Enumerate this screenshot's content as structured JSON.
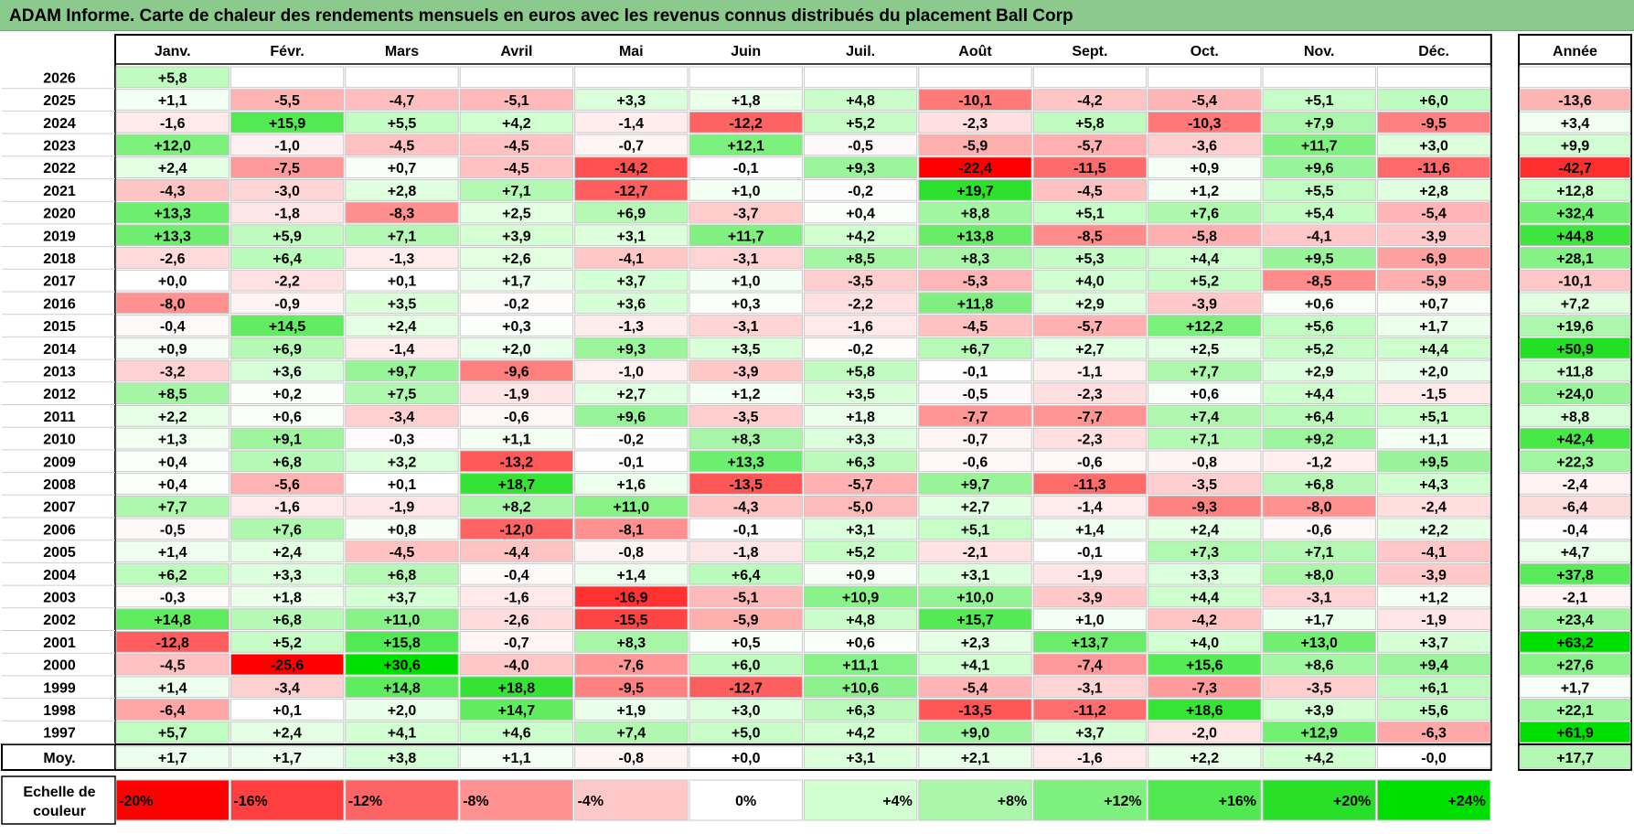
{
  "title": "ADAM Informe. Carte de chaleur des rendements mensuels en euros avec les revenus connus distribués du placement Ball Corp",
  "chart_data": {
    "type": "heatmap",
    "months": [
      "Janv.",
      "Févr.",
      "Mars",
      "Avril",
      "Mai",
      "Juin",
      "Juil.",
      "Août",
      "Sept.",
      "Oct.",
      "Nov.",
      "Déc."
    ],
    "year_header": "Année",
    "avg_label": "Moy.",
    "scale_label_1": "Echelle de",
    "scale_label_2": "couleur",
    "rows": [
      {
        "year": "2026",
        "months": [
          "+5,8",
          "",
          "",
          "",
          "",
          "",
          "",
          "",
          "",
          "",
          "",
          ""
        ],
        "annual": ""
      },
      {
        "year": "2025",
        "months": [
          "+1,1",
          "-5,5",
          "-4,7",
          "-5,1",
          "+3,3",
          "+1,8",
          "+4,8",
          "-10,1",
          "-4,2",
          "-5,4",
          "+5,1",
          "+6,0"
        ],
        "annual": "-13,6"
      },
      {
        "year": "2024",
        "months": [
          "-1,6",
          "+15,9",
          "+5,5",
          "+4,2",
          "-1,4",
          "-12,2",
          "+5,2",
          "-2,3",
          "+5,8",
          "-10,3",
          "+7,9",
          "-9,5"
        ],
        "annual": "+3,4"
      },
      {
        "year": "2023",
        "months": [
          "+12,0",
          "-1,0",
          "-4,5",
          "-4,5",
          "-0,7",
          "+12,1",
          "-0,5",
          "-5,9",
          "-5,7",
          "-3,6",
          "+11,7",
          "+3,0"
        ],
        "annual": "+9,9"
      },
      {
        "year": "2022",
        "months": [
          "+2,4",
          "-7,5",
          "+0,7",
          "-4,5",
          "-14,2",
          "-0,1",
          "+9,3",
          "-22,4",
          "-11,5",
          "+0,9",
          "+9,6",
          "-11,6"
        ],
        "annual": "-42,7"
      },
      {
        "year": "2021",
        "months": [
          "-4,3",
          "-3,0",
          "+2,8",
          "+7,1",
          "-12,7",
          "+1,0",
          "-0,2",
          "+19,7",
          "-4,5",
          "+1,2",
          "+5,5",
          "+2,8"
        ],
        "annual": "+12,8"
      },
      {
        "year": "2020",
        "months": [
          "+13,3",
          "-1,8",
          "-8,3",
          "+2,5",
          "+6,9",
          "-3,7",
          "+0,4",
          "+8,8",
          "+5,1",
          "+7,6",
          "+5,4",
          "-5,4"
        ],
        "annual": "+32,4"
      },
      {
        "year": "2019",
        "months": [
          "+13,3",
          "+5,9",
          "+7,1",
          "+3,9",
          "+3,1",
          "+11,7",
          "+4,2",
          "+13,8",
          "-8,5",
          "-5,8",
          "-4,1",
          "-3,9"
        ],
        "annual": "+44,8"
      },
      {
        "year": "2018",
        "months": [
          "-2,6",
          "+6,4",
          "-1,3",
          "+2,6",
          "-4,1",
          "-3,1",
          "+8,5",
          "+8,3",
          "+5,3",
          "+4,4",
          "+9,5",
          "-6,9"
        ],
        "annual": "+28,1"
      },
      {
        "year": "2017",
        "months": [
          "+0,0",
          "-2,2",
          "+0,1",
          "+1,7",
          "+3,7",
          "+1,0",
          "-3,5",
          "-5,3",
          "+4,0",
          "+5,2",
          "-8,5",
          "-5,9"
        ],
        "annual": "-10,1"
      },
      {
        "year": "2016",
        "months": [
          "-8,0",
          "-0,9",
          "+3,5",
          "-0,2",
          "+3,6",
          "+0,3",
          "-2,2",
          "+11,8",
          "+2,9",
          "-3,9",
          "+0,6",
          "+0,7"
        ],
        "annual": "+7,2"
      },
      {
        "year": "2015",
        "months": [
          "-0,4",
          "+14,5",
          "+2,4",
          "+0,3",
          "-1,3",
          "-3,1",
          "-1,6",
          "-4,5",
          "-5,7",
          "+12,2",
          "+5,6",
          "+1,7"
        ],
        "annual": "+19,6"
      },
      {
        "year": "2014",
        "months": [
          "+0,9",
          "+6,9",
          "-1,4",
          "+2,0",
          "+9,3",
          "+3,5",
          "-0,2",
          "+6,7",
          "+2,7",
          "+2,5",
          "+5,2",
          "+4,4"
        ],
        "annual": "+50,9"
      },
      {
        "year": "2013",
        "months": [
          "-3,2",
          "+3,6",
          "+9,7",
          "-9,6",
          "-1,0",
          "-3,9",
          "+5,8",
          "-0,1",
          "-1,1",
          "+7,7",
          "+2,9",
          "+2,0"
        ],
        "annual": "+11,8"
      },
      {
        "year": "2012",
        "months": [
          "+8,5",
          "+0,2",
          "+7,5",
          "-1,9",
          "+2,7",
          "+1,2",
          "+3,5",
          "-0,5",
          "-2,3",
          "+0,6",
          "+4,4",
          "-1,5"
        ],
        "annual": "+24,0"
      },
      {
        "year": "2011",
        "months": [
          "+2,2",
          "+0,6",
          "-3,4",
          "-0,6",
          "+9,6",
          "-3,5",
          "+1,8",
          "-7,7",
          "-7,7",
          "+7,4",
          "+6,4",
          "+5,1"
        ],
        "annual": "+8,8"
      },
      {
        "year": "2010",
        "months": [
          "+1,3",
          "+9,1",
          "-0,3",
          "+1,1",
          "-0,2",
          "+8,3",
          "+3,3",
          "-0,7",
          "-2,3",
          "+7,1",
          "+9,2",
          "+1,1"
        ],
        "annual": "+42,4"
      },
      {
        "year": "2009",
        "months": [
          "+0,4",
          "+6,8",
          "+3,2",
          "-13,2",
          "-0,1",
          "+13,3",
          "+6,3",
          "-0,6",
          "-0,6",
          "-0,8",
          "-1,2",
          "+9,5"
        ],
        "annual": "+22,3"
      },
      {
        "year": "2008",
        "months": [
          "+0,4",
          "-5,6",
          "+0,1",
          "+18,7",
          "+1,6",
          "-13,5",
          "-5,7",
          "+9,7",
          "-11,3",
          "-3,5",
          "+6,8",
          "+4,3"
        ],
        "annual": "-2,4"
      },
      {
        "year": "2007",
        "months": [
          "+7,7",
          "-1,6",
          "-1,9",
          "+8,2",
          "+11,0",
          "-4,3",
          "-5,0",
          "+2,7",
          "-1,4",
          "-9,3",
          "-8,0",
          "-2,4"
        ],
        "annual": "-6,4"
      },
      {
        "year": "2006",
        "months": [
          "-0,5",
          "+7,6",
          "+0,8",
          "-12,0",
          "-8,1",
          "-0,1",
          "+3,1",
          "+5,1",
          "+1,4",
          "+2,4",
          "-0,6",
          "+2,2"
        ],
        "annual": "-0,4"
      },
      {
        "year": "2005",
        "months": [
          "+1,4",
          "+2,4",
          "-4,5",
          "-4,4",
          "-0,8",
          "-1,8",
          "+5,2",
          "-2,1",
          "-0,1",
          "+7,3",
          "+7,1",
          "-4,1"
        ],
        "annual": "+4,7"
      },
      {
        "year": "2004",
        "months": [
          "+6,2",
          "+3,3",
          "+6,8",
          "-0,4",
          "+1,4",
          "+6,4",
          "+0,9",
          "+3,1",
          "-1,9",
          "+3,3",
          "+8,0",
          "-3,9"
        ],
        "annual": "+37,8"
      },
      {
        "year": "2003",
        "months": [
          "-0,3",
          "+1,8",
          "+3,7",
          "-1,6",
          "-16,9",
          "-5,1",
          "+10,9",
          "+10,0",
          "-3,9",
          "+4,4",
          "-3,1",
          "+1,2"
        ],
        "annual": "-2,1"
      },
      {
        "year": "2002",
        "months": [
          "+14,8",
          "+6,8",
          "+11,0",
          "-2,6",
          "-15,5",
          "-5,9",
          "+4,8",
          "+15,7",
          "+1,0",
          "-4,2",
          "+1,7",
          "-1,9"
        ],
        "annual": "+23,4"
      },
      {
        "year": "2001",
        "months": [
          "-12,8",
          "+5,2",
          "+15,8",
          "-0,7",
          "+8,3",
          "+0,5",
          "+0,6",
          "+2,3",
          "+13,7",
          "+4,0",
          "+13,0",
          "+3,7"
        ],
        "annual": "+63,2"
      },
      {
        "year": "2000",
        "months": [
          "-4,5",
          "-25,6",
          "+30,6",
          "-4,0",
          "-7,6",
          "+6,0",
          "+11,1",
          "+4,1",
          "-7,4",
          "+15,6",
          "+8,6",
          "+9,4"
        ],
        "annual": "+27,6"
      },
      {
        "year": "1999",
        "months": [
          "+1,4",
          "-3,4",
          "+14,8",
          "+18,8",
          "-9,5",
          "-12,7",
          "+10,6",
          "-5,4",
          "-3,1",
          "-7,3",
          "-3,5",
          "+6,1"
        ],
        "annual": "+1,7"
      },
      {
        "year": "1998",
        "months": [
          "-6,4",
          "+0,1",
          "+2,0",
          "+14,7",
          "+1,9",
          "+3,0",
          "+6,3",
          "-13,5",
          "-11,2",
          "+18,6",
          "+3,9",
          "+5,6"
        ],
        "annual": "+22,1"
      },
      {
        "year": "1997",
        "months": [
          "+5,7",
          "+2,4",
          "+4,1",
          "+4,6",
          "+7,4",
          "+5,0",
          "+4,2",
          "+9,0",
          "+3,7",
          "-2,0",
          "+12,9",
          "-6,3"
        ],
        "annual": "+61,9"
      }
    ],
    "average": {
      "months": [
        "+1,7",
        "+1,7",
        "+3,8",
        "+1,1",
        "-0,8",
        "+0,0",
        "+3,1",
        "+2,1",
        "-1,6",
        "+2,2",
        "+4,2",
        "-0,0"
      ],
      "annual": "+17,7"
    },
    "scale": [
      "-20%",
      "-16%",
      "-12%",
      "-8%",
      "-4%",
      "0%",
      "+4%",
      "+8%",
      "+12%",
      "+16%",
      "+20%",
      "+24%"
    ],
    "scale_values": [
      -20,
      -16,
      -12,
      -8,
      -4,
      0,
      4,
      8,
      12,
      16,
      20,
      24
    ],
    "scale_colors": [
      "#ff0000",
      "#ff3f3f",
      "#ff6464",
      "#ff9191",
      "#ffc8c8",
      "#ffffff",
      "#d2ffd2",
      "#aaf7aa",
      "#7df07d",
      "#50ea50",
      "#28e028",
      "#00e000"
    ],
    "annual_scale_max": 60
  }
}
